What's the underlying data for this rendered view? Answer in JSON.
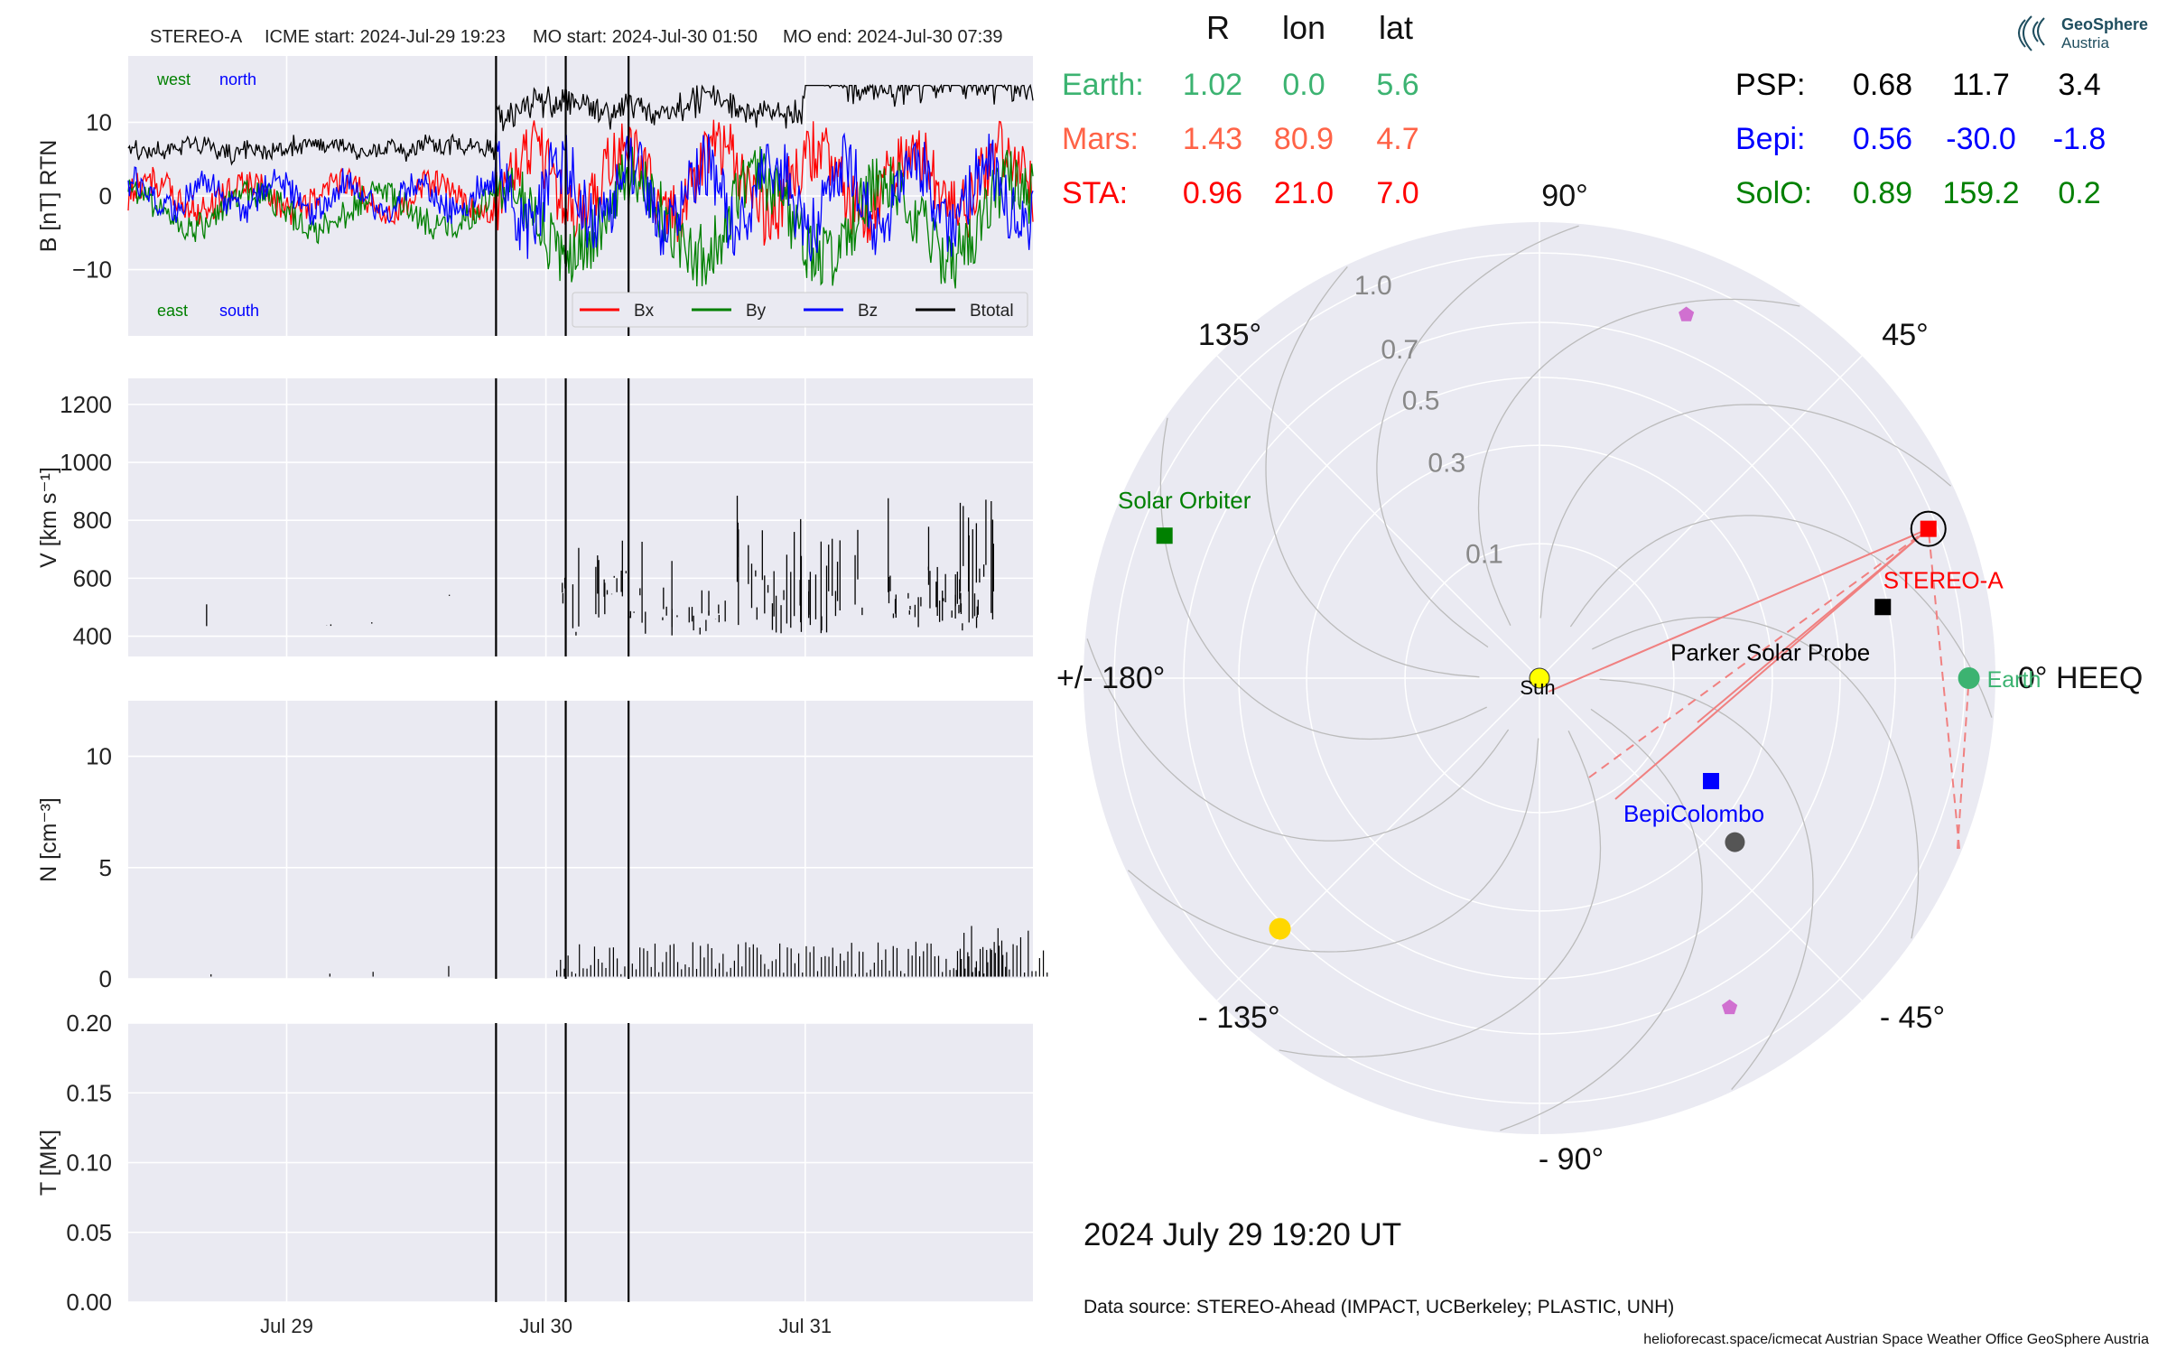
{
  "header": {
    "spacecraft": "STEREO-A",
    "icme_start": "ICME start: 2024-Jul-29 19:23",
    "mo_start": "MO start: 2024-Jul-30 01:50",
    "mo_end": "MO end: 2024-Jul-30 07:39"
  },
  "logo": {
    "line1": "GeoSphere",
    "line2": "Austria"
  },
  "positions": {
    "columns": [
      "R",
      "lon",
      "lat"
    ],
    "left": [
      {
        "name": "Earth:",
        "r": "1.02",
        "lon": "0.0",
        "lat": "5.6",
        "color": "#3cb371"
      },
      {
        "name": "Mars:",
        "r": "1.43",
        "lon": "80.9",
        "lat": "4.7",
        "color": "#ff6347"
      },
      {
        "name": "STA:",
        "r": "0.96",
        "lon": "21.0",
        "lat": "7.0",
        "color": "#ff0000"
      }
    ],
    "right": [
      {
        "name": "PSP:",
        "r": "0.68",
        "lon": "11.7",
        "lat": "3.4",
        "color": "#000000"
      },
      {
        "name": "Bepi:",
        "r": "0.56",
        "lon": "-30.0",
        "lat": "-1.8",
        "color": "#0000ff"
      },
      {
        "name": "SolO:",
        "r": "0.89",
        "lon": "159.2",
        "lat": "0.2",
        "color": "#008000"
      }
    ]
  },
  "polar": {
    "angle_labels": [
      {
        "text": "90°",
        "deg": 90
      },
      {
        "text": "45°",
        "deg": 45
      },
      {
        "text": "0° HEEQ",
        "deg": 0
      },
      {
        "text": "- 45°",
        "deg": -45
      },
      {
        "text": "- 90°",
        "deg": -90
      },
      {
        "text": "- 135°",
        "deg": -135
      },
      {
        "text": "+/- 180°",
        "deg": 180
      },
      {
        "text": "135°",
        "deg": 135
      }
    ],
    "radial_labels": [
      "0.1",
      "0.3",
      "0.5",
      "0.7",
      "1.0"
    ],
    "bodies": [
      {
        "label": "Sun",
        "r": 0,
        "lon": 0,
        "marker": "circle",
        "color": "#ffff00",
        "text_color": "#000000"
      },
      {
        "label": "Earth",
        "r": 1.02,
        "lon": 0.0,
        "marker": "circle",
        "color": "#3cb371",
        "text_color": "#3cb371"
      },
      {
        "label": "STEREO-A",
        "r": 0.96,
        "lon": 21.0,
        "marker": "square",
        "color": "#ff0000",
        "text_color": "#ff0000"
      },
      {
        "label": "Parker Solar Probe",
        "r": 0.68,
        "lon": 11.7,
        "marker": "square",
        "color": "#000000",
        "text_color": "#000000"
      },
      {
        "label": "BepiColombo",
        "r": 0.56,
        "lon": -30.0,
        "marker": "square",
        "color": "#0000ff",
        "text_color": "#0000ff"
      },
      {
        "label": "Solar Orbiter",
        "r": 0.89,
        "lon": 159.2,
        "marker": "square",
        "color": "#008000",
        "text_color": "#008000"
      }
    ],
    "extra_markers": [
      {
        "kind": "mercury",
        "r": 0.36,
        "lon": -40.0,
        "color": "#555555"
      },
      {
        "kind": "venus",
        "r": 0.72,
        "lon": -136.0,
        "color": "#ffd700"
      },
      {
        "kind": "pentagon",
        "r": 0.85,
        "lon": 68.0,
        "color": "#d070d0"
      },
      {
        "kind": "pentagon",
        "r": 0.8,
        "lon": -60.0,
        "color": "#d070d0"
      }
    ]
  },
  "date_label": "2024 July 29  19:20 UT",
  "data_source": "Data source: STEREO-Ahead (IMPACT, UCBerkeley; PLASTIC, UNH)",
  "credits": "helioforecast.space/icmecat   Austrian Space Weather Office   GeoSphere Austria",
  "chart_data": [
    {
      "type": "line",
      "ylabel": "B [nT] RTN",
      "ylim": [
        -19,
        19
      ],
      "yticks": [
        "10",
        "0",
        "−10"
      ],
      "corner_labels": [
        "west",
        "north",
        "east",
        "south"
      ],
      "legend": [
        "Bx",
        "By",
        "Bz",
        "Btotal"
      ],
      "series_colors": [
        "#ff0000",
        "#008000",
        "#0000ff",
        "#000000"
      ],
      "event_times": [
        "2024-07-29 19:23",
        "2024-07-30 01:50",
        "2024-07-30 07:39"
      ],
      "x_range": [
        "2024-07-28 09:20",
        "2024-07-31 21:05"
      ],
      "xticks": [
        "Jul 29",
        "Jul 30",
        "Jul 31"
      ]
    },
    {
      "type": "line",
      "ylabel": "V [km s⁻¹]",
      "ylim": [
        330,
        1290
      ],
      "yticks": [
        "1200",
        "1000",
        "800",
        "600",
        "400"
      ]
    },
    {
      "type": "line",
      "ylabel": "N [cm⁻³]",
      "ylim": [
        0,
        12.5
      ],
      "yticks": [
        "10",
        "5",
        "0"
      ]
    },
    {
      "type": "line",
      "ylabel": "T [MK]",
      "ylim": [
        0,
        0.2
      ],
      "yticks": [
        "0.20",
        "0.15",
        "0.10",
        "0.05",
        "0.00"
      ],
      "values": []
    }
  ]
}
